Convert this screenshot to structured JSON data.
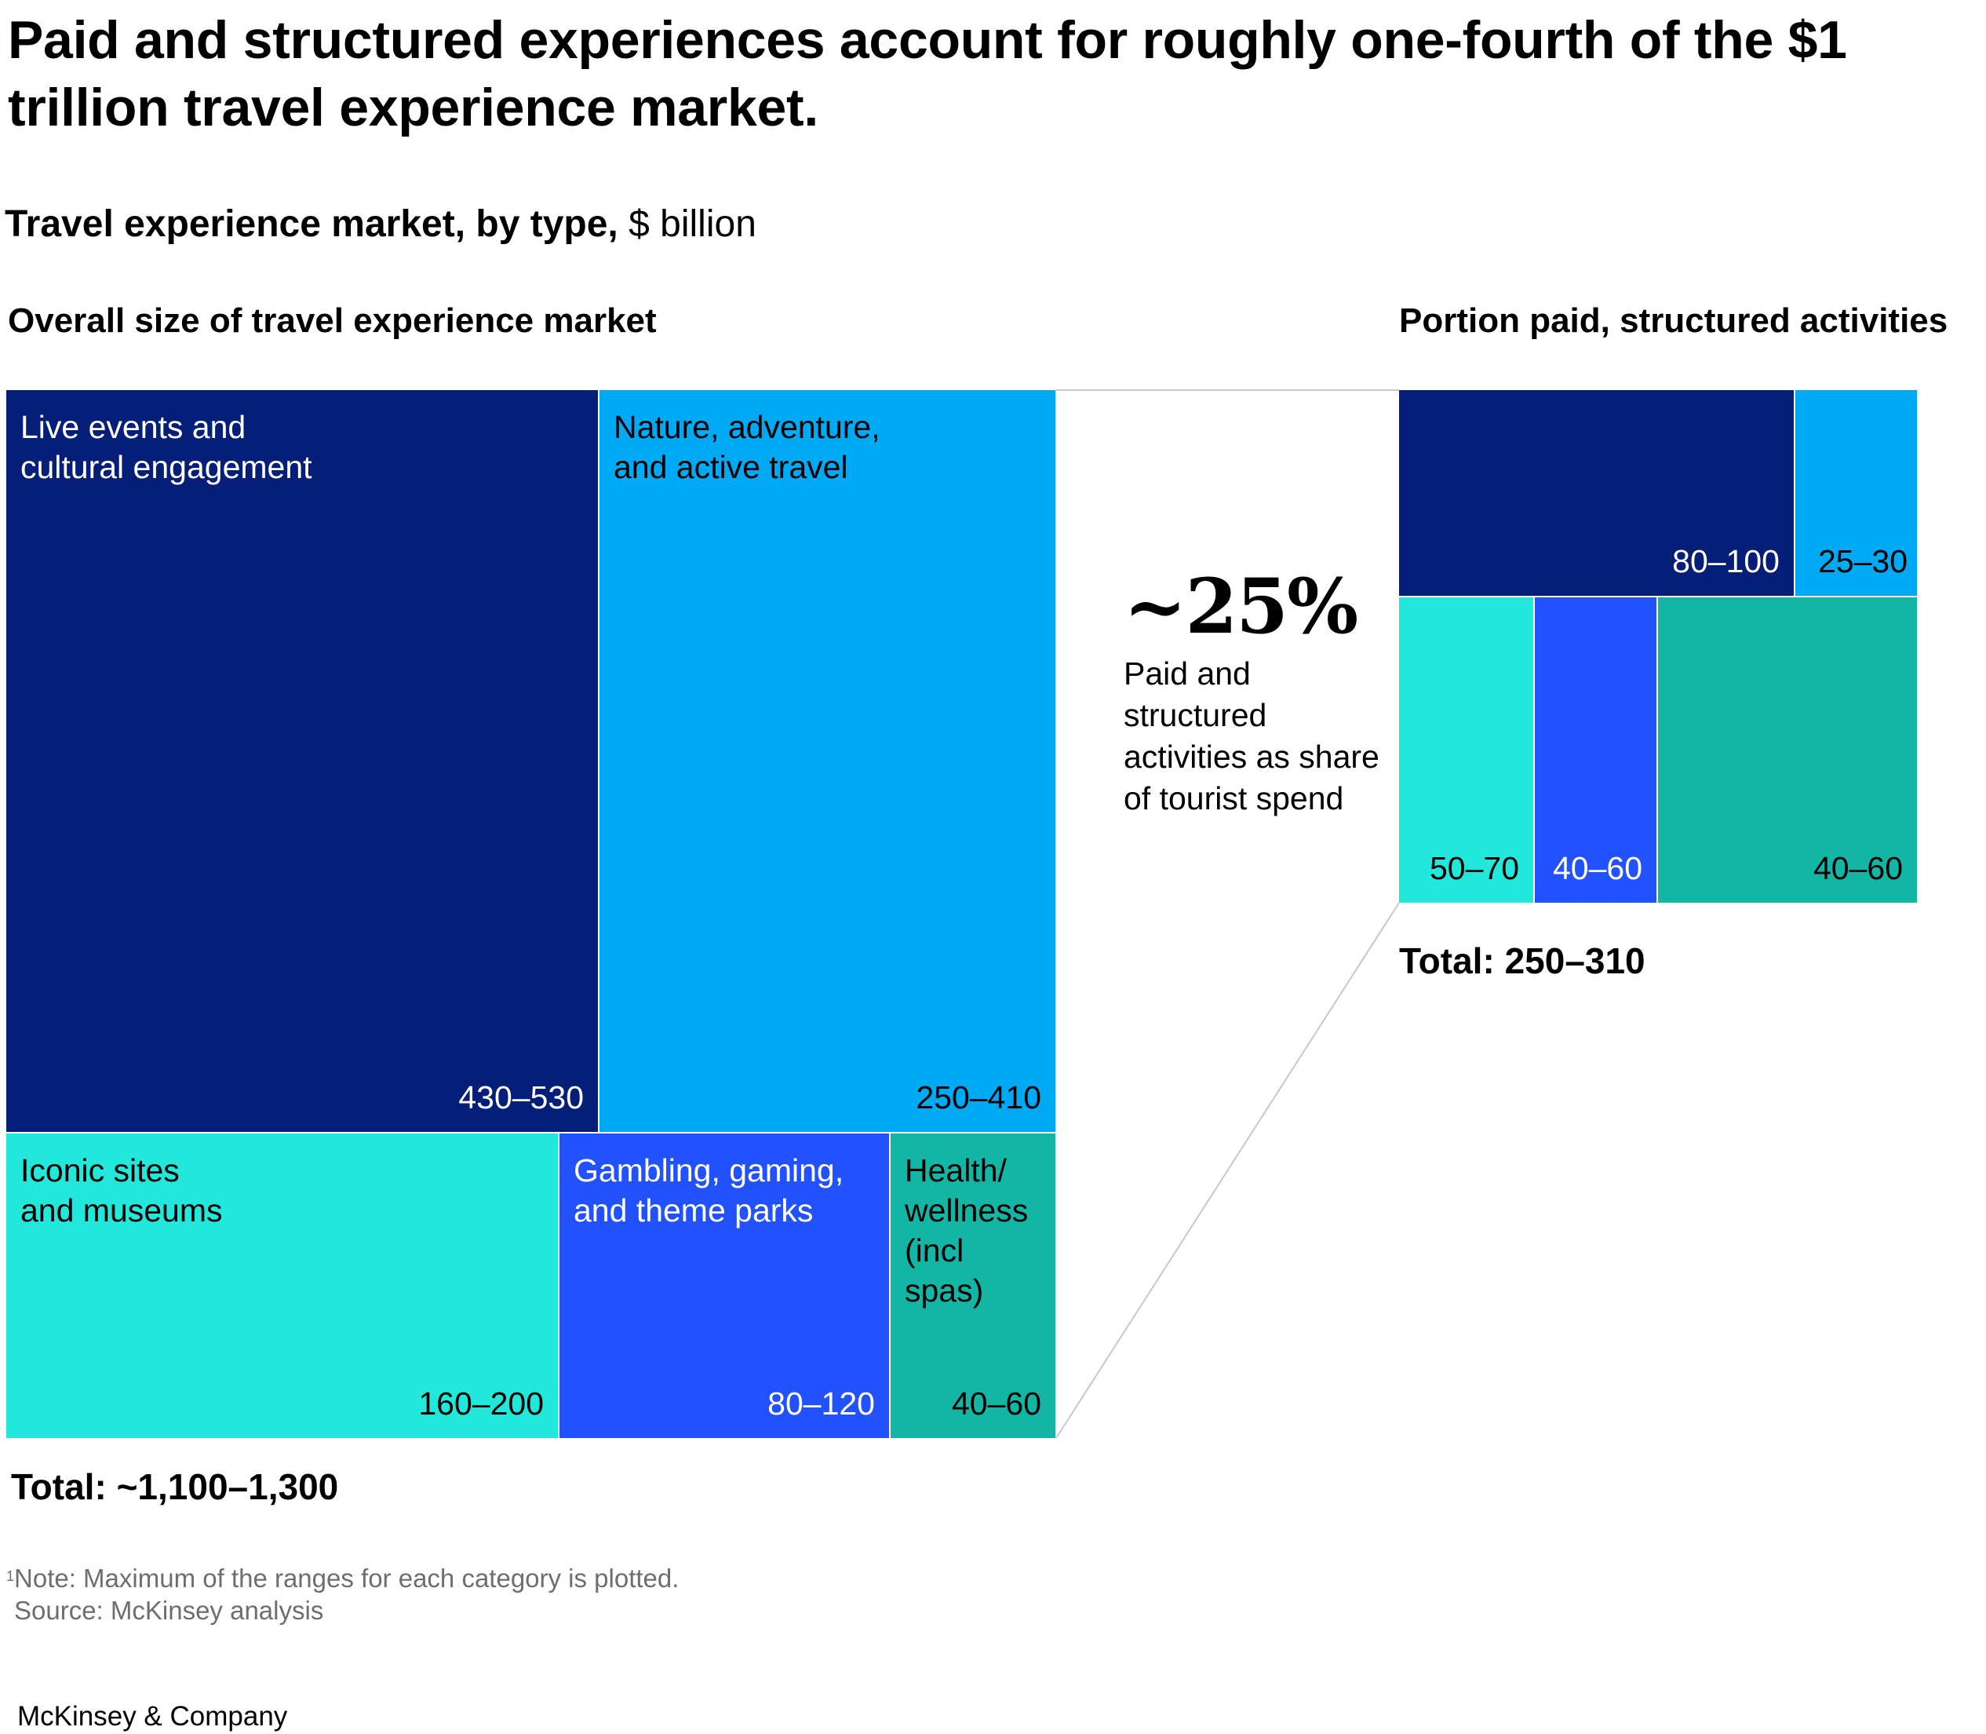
{
  "title": "Paid and structured experiences account for roughly one-fourth of the $1 trillion travel experience market.",
  "subtitle": {
    "bold": "Travel experience market, by type,",
    "unit": "$ billion"
  },
  "colors": {
    "live_events": "#051e77",
    "nature": "#00a9f4",
    "iconic_sites": "#21e8da",
    "gambling": "#2251ff",
    "health": "#13b6a5",
    "connector": "#c8c8c8"
  },
  "chart_data": [
    {
      "type": "treemap",
      "title": "Overall size of travel experience market",
      "unit": "$ billion",
      "note": "Maximum of the ranges for each category is plotted.",
      "categories": [
        {
          "name": "Live events and cultural engagement",
          "label_lines": [
            "Live events and",
            "cultural engagement"
          ],
          "range": "430–530",
          "min": 430,
          "max": 530,
          "color": "#051e77",
          "text_color": "#ffffff"
        },
        {
          "name": "Nature, adventure, and active travel",
          "label_lines": [
            "Nature, adventure,",
            "and active travel"
          ],
          "range": "250–410",
          "min": 250,
          "max": 410,
          "color": "#00a9f4",
          "text_color": "#000000"
        },
        {
          "name": "Iconic sites and museums",
          "label_lines": [
            "Iconic sites",
            "and museums"
          ],
          "range": "160–200",
          "min": 160,
          "max": 200,
          "color": "#21e8da",
          "text_color": "#000000"
        },
        {
          "name": "Gambling, gaming, and theme parks",
          "label_lines": [
            "Gambling, gaming,",
            "and theme parks"
          ],
          "range": "80–120",
          "min": 80,
          "max": 120,
          "color": "#2251ff",
          "text_color": "#ffffff"
        },
        {
          "name": "Health/wellness (incl spas)",
          "label_lines": [
            "Health/",
            "wellness",
            "(incl",
            "spas)"
          ],
          "range": "40–60",
          "min": 40,
          "max": 60,
          "color": "#13b6a5",
          "text_color": "#000000"
        }
      ],
      "total": "Total: ~1,100–1,300"
    },
    {
      "type": "treemap",
      "title": "Portion paid, structured activities",
      "unit": "$ billion",
      "categories": [
        {
          "name": "Live events and cultural engagement",
          "range": "80–100",
          "min": 80,
          "max": 100,
          "color": "#051e77",
          "text_color": "#ffffff"
        },
        {
          "name": "Nature, adventure, and active travel",
          "range": "25–30",
          "min": 25,
          "max": 30,
          "color": "#00a9f4",
          "text_color": "#000000"
        },
        {
          "name": "Iconic sites and museums",
          "range": "50–70",
          "min": 50,
          "max": 70,
          "color": "#21e8da",
          "text_color": "#000000"
        },
        {
          "name": "Gambling, gaming, and theme parks",
          "range": "40–60",
          "min": 40,
          "max": 60,
          "color": "#2251ff",
          "text_color": "#ffffff"
        },
        {
          "name": "Health/wellness (incl spas)",
          "range": "40–60",
          "min": 40,
          "max": 60,
          "color": "#13b6a5",
          "text_color": "#000000"
        }
      ],
      "total": "Total: 250–310"
    }
  ],
  "callout": {
    "value": "~25%",
    "description": "Paid and structured activities as share of tourist spend"
  },
  "footnote": {
    "marker": "1",
    "text": "Note: Maximum of the ranges for each category is plotted."
  },
  "source": "Source: McKinsey analysis",
  "brand": "McKinsey & Company"
}
